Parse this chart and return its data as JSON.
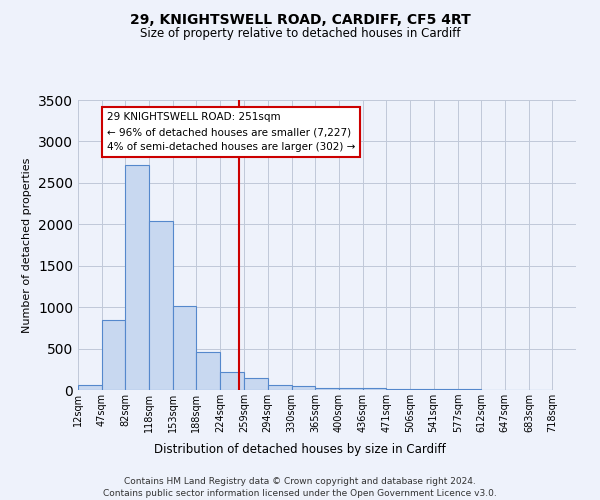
{
  "title1": "29, KNIGHTSWELL ROAD, CARDIFF, CF5 4RT",
  "title2": "Size of property relative to detached houses in Cardiff",
  "xlabel": "Distribution of detached houses by size in Cardiff",
  "ylabel": "Number of detached properties",
  "bin_labels": [
    "12sqm",
    "47sqm",
    "82sqm",
    "118sqm",
    "153sqm",
    "188sqm",
    "224sqm",
    "259sqm",
    "294sqm",
    "330sqm",
    "365sqm",
    "400sqm",
    "436sqm",
    "471sqm",
    "506sqm",
    "541sqm",
    "577sqm",
    "612sqm",
    "647sqm",
    "683sqm",
    "718sqm"
  ],
  "bin_edges": [
    12,
    47,
    82,
    118,
    153,
    188,
    224,
    259,
    294,
    330,
    365,
    400,
    436,
    471,
    506,
    541,
    577,
    612,
    647,
    683,
    718
  ],
  "bar_heights": [
    60,
    840,
    2720,
    2040,
    1010,
    460,
    220,
    150,
    65,
    50,
    30,
    25,
    20,
    15,
    12,
    10,
    8,
    6,
    5,
    4
  ],
  "bar_color": "#c8d8f0",
  "bar_edge_color": "#5588cc",
  "vline_x": 251,
  "vline_color": "#cc0000",
  "annotation_line1": "29 KNIGHTSWELL ROAD: 251sqm",
  "annotation_line2": "← 96% of detached houses are smaller (7,227)",
  "annotation_line3": "4% of semi-detached houses are larger (302) →",
  "annotation_box_edge_color": "#cc0000",
  "ylim": [
    0,
    3500
  ],
  "yticks": [
    0,
    500,
    1000,
    1500,
    2000,
    2500,
    3000,
    3500
  ],
  "footnote1": "Contains HM Land Registry data © Crown copyright and database right 2024.",
  "footnote2": "Contains public sector information licensed under the Open Government Licence v3.0.",
  "bg_color": "#eef2fb"
}
